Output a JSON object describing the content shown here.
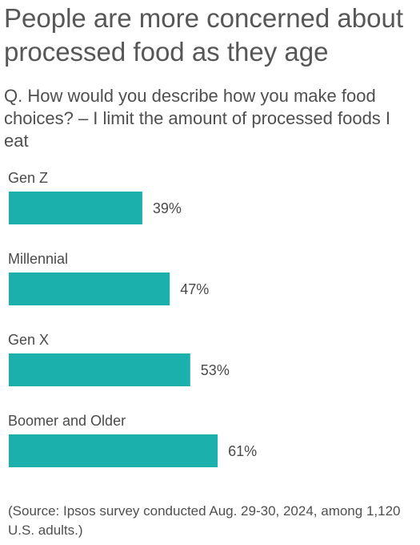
{
  "header": {
    "title": "People are more concerned about processed food as they age",
    "subtitle": "Q. How would you describe how you make food choices? – I limit the amount of processed foods I eat"
  },
  "footer": {
    "source": "(Source: Ipsos survey conducted Aug. 29-30, 2024, among 1,120 U.S. adults.)"
  },
  "colors": {
    "bar": "#1cb0ad"
  },
  "chart_data": {
    "type": "bar",
    "orientation": "horizontal",
    "categories": [
      "Gen Z",
      "Millennial",
      "Gen X",
      "Boomer and Older"
    ],
    "values": [
      39,
      47,
      53,
      61
    ],
    "value_labels": [
      "39%",
      "47%",
      "53%",
      "61%"
    ],
    "unit": "%",
    "title": "People are more concerned about processed food as they age",
    "subtitle": "Q. How would you describe how you make food choices? – I limit the amount of processed foods I eat",
    "xlabel": "",
    "ylabel": "",
    "xlim": [
      0,
      100
    ],
    "grid": false,
    "legend": "none"
  }
}
